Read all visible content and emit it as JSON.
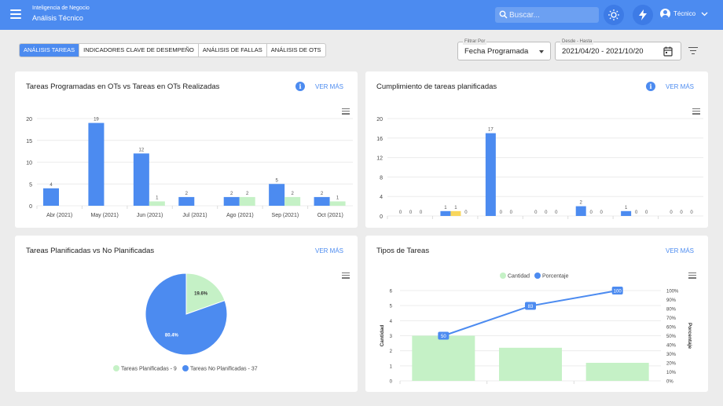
{
  "header": {
    "app_subtitle": "Inteligencia de Negocio",
    "app_title": "Análisis Técnico",
    "search_placeholder": "Buscar...",
    "user_name": "Técnico"
  },
  "tabs": [
    {
      "label": "ANÁLISIS TAREAS",
      "active": true
    },
    {
      "label": "INDICADORES CLAVE DE DESEMPEÑO",
      "active": false
    },
    {
      "label": "ANÁLISIS DE FALLAS",
      "active": false
    },
    {
      "label": "ANÁLISIS DE OTS",
      "active": false
    }
  ],
  "filters": {
    "filter_by_label": "Filtrar Por",
    "filter_by_value": "Fecha Programada",
    "date_range_label": "Desde - Hasta",
    "date_range_value": "2021/04/20 - 2021/10/20"
  },
  "cards": {
    "c1": {
      "title": "Tareas Programadas en OTs vs Tareas en OTs Realizadas",
      "link": "VER MÁS",
      "info": "i"
    },
    "c2": {
      "title": "Cumplimiento de tareas planificadas",
      "link": "VER MÁS",
      "info": "i"
    },
    "c3": {
      "title": "Tareas Planificadas vs No Planificadas",
      "link": "VER MÁS"
    },
    "c4": {
      "title": "Tipos de Tareas",
      "link": "VER MÁS"
    }
  },
  "colors": {
    "blue": "#4c8bf0",
    "green": "#c5f1c6",
    "yellow": "#f8d65c",
    "header": "#4c8bf0"
  },
  "chart_data": [
    {
      "type": "bar",
      "categories": [
        "Abr (2021)",
        "May (2021)",
        "Jun (2021)",
        "Jul (2021)",
        "Ago (2021)",
        "Sep (2021)",
        "Oct (2021)"
      ],
      "series": [
        {
          "values": [
            4,
            19,
            12,
            2,
            2,
            5,
            2
          ]
        },
        {
          "values": [
            0,
            0,
            1,
            0,
            2,
            2,
            1
          ]
        }
      ],
      "data_labels": [
        [
          "4",
          "19",
          "12",
          "2",
          "2",
          "5",
          "2"
        ],
        [
          "",
          "",
          "1",
          "",
          "2",
          "2",
          "1"
        ]
      ],
      "yticks": [
        "0",
        "5",
        "10",
        "15",
        "20"
      ],
      "ylim": [
        0,
        20
      ],
      "grid": true
    },
    {
      "type": "bar",
      "groups": 7,
      "series": [
        {
          "values": [
            0,
            1,
            17,
            0,
            2,
            1,
            0
          ]
        },
        {
          "values": [
            0,
            1,
            0,
            0,
            0,
            0,
            0
          ]
        },
        {
          "values": [
            0,
            0,
            0,
            0,
            0,
            0,
            0
          ]
        }
      ],
      "yticks": [
        "0",
        "4",
        "8",
        "12",
        "16",
        "20"
      ],
      "ylim": [
        0,
        20
      ],
      "grid": true
    },
    {
      "type": "pie",
      "slices": [
        {
          "name": "Tareas Planificadas - 9",
          "value": 19.6,
          "label": "19.6%"
        },
        {
          "name": "Tareas No Planificadas - 37",
          "value": 80.4,
          "label": "80.4%"
        }
      ],
      "legend": "bottom"
    },
    {
      "type": "bar",
      "legend": [
        "Cantidad",
        "Porcentaje"
      ],
      "ylabel": "Cantidad",
      "y2label": "Porcentaje",
      "yticks": [
        "0",
        "1",
        "2",
        "3",
        "4",
        "5",
        "6"
      ],
      "y2ticks": [
        "0%",
        "10%",
        "20%",
        "30%",
        "40%",
        "50%",
        "60%",
        "70%",
        "80%",
        "90%",
        "100%"
      ],
      "ylim": [
        0,
        6
      ],
      "y2lim": [
        0,
        100
      ],
      "bar_values": [
        3,
        2.2,
        1.2
      ],
      "line_values": [
        50,
        83,
        100
      ],
      "line_labels": [
        "50",
        "83",
        "100"
      ],
      "grid": true
    }
  ]
}
